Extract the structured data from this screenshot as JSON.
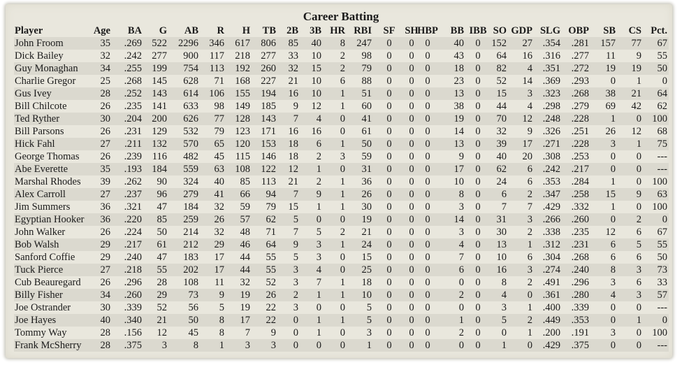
{
  "title": "Career Batting",
  "columns": [
    "Player",
    "Age",
    "BA",
    "G",
    "AB",
    "R",
    "H",
    "TB",
    "2B",
    "3B",
    "HR",
    "RBI",
    "SF",
    "SH",
    "HBP",
    "BB",
    "IBB",
    "SO",
    "GDP",
    "SLG",
    "OBP",
    "SB",
    "CS",
    "Pct."
  ],
  "rows": [
    [
      "John Froom",
      "35",
      ".269",
      "522",
      "2296",
      "346",
      "617",
      "806",
      "85",
      "40",
      "8",
      "247",
      "0",
      "0",
      "0",
      "40",
      "0",
      "152",
      "27",
      ".354",
      ".281",
      "157",
      "77",
      "67"
    ],
    [
      "Dick Bailey",
      "32",
      ".242",
      "277",
      "900",
      "117",
      "218",
      "277",
      "33",
      "10",
      "2",
      "98",
      "0",
      "0",
      "0",
      "43",
      "0",
      "64",
      "16",
      ".316",
      ".277",
      "11",
      "9",
      "55"
    ],
    [
      "Guy Monaghan",
      "34",
      ".255",
      "199",
      "754",
      "113",
      "192",
      "260",
      "32",
      "15",
      "2",
      "79",
      "0",
      "0",
      "0",
      "18",
      "0",
      "82",
      "4",
      ".351",
      ".272",
      "19",
      "19",
      "50"
    ],
    [
      "Charlie Gregor",
      "25",
      ".268",
      "145",
      "628",
      "71",
      "168",
      "227",
      "21",
      "10",
      "6",
      "88",
      "0",
      "0",
      "0",
      "23",
      "0",
      "52",
      "14",
      ".369",
      ".293",
      "0",
      "1",
      "0"
    ],
    [
      "Gus Ivey",
      "28",
      ".252",
      "143",
      "614",
      "106",
      "155",
      "194",
      "16",
      "10",
      "1",
      "51",
      "0",
      "0",
      "0",
      "13",
      "0",
      "15",
      "3",
      ".323",
      ".268",
      "38",
      "21",
      "64"
    ],
    [
      "Bill Chilcote",
      "26",
      ".235",
      "141",
      "633",
      "98",
      "149",
      "185",
      "9",
      "12",
      "1",
      "60",
      "0",
      "0",
      "0",
      "38",
      "0",
      "44",
      "4",
      ".298",
      ".279",
      "69",
      "42",
      "62"
    ],
    [
      "Ted Ryther",
      "30",
      ".204",
      "200",
      "626",
      "77",
      "128",
      "143",
      "7",
      "4",
      "0",
      "41",
      "0",
      "0",
      "0",
      "19",
      "0",
      "70",
      "12",
      ".248",
      ".228",
      "1",
      "0",
      "100"
    ],
    [
      "Bill Parsons",
      "26",
      ".231",
      "129",
      "532",
      "79",
      "123",
      "171",
      "16",
      "16",
      "0",
      "61",
      "0",
      "0",
      "0",
      "14",
      "0",
      "32",
      "9",
      ".326",
      ".251",
      "26",
      "12",
      "68"
    ],
    [
      "Hick Fahl",
      "27",
      ".211",
      "132",
      "570",
      "65",
      "120",
      "153",
      "18",
      "6",
      "1",
      "50",
      "0",
      "0",
      "0",
      "13",
      "0",
      "39",
      "17",
      ".271",
      ".228",
      "3",
      "1",
      "75"
    ],
    [
      "George Thomas",
      "26",
      ".239",
      "116",
      "482",
      "45",
      "115",
      "146",
      "18",
      "2",
      "3",
      "59",
      "0",
      "0",
      "0",
      "9",
      "0",
      "40",
      "20",
      ".308",
      ".253",
      "0",
      "0",
      "---"
    ],
    [
      "Abe Everette",
      "35",
      ".193",
      "184",
      "559",
      "63",
      "108",
      "122",
      "12",
      "1",
      "0",
      "31",
      "0",
      "0",
      "0",
      "17",
      "0",
      "62",
      "6",
      ".242",
      ".217",
      "0",
      "0",
      "---"
    ],
    [
      "Marshal Rhodes",
      "39",
      ".262",
      "90",
      "324",
      "40",
      "85",
      "113",
      "21",
      "2",
      "1",
      "36",
      "0",
      "0",
      "0",
      "10",
      "0",
      "24",
      "6",
      ".353",
      ".284",
      "1",
      "0",
      "100"
    ],
    [
      "Alex Carroll",
      "27",
      ".237",
      "96",
      "279",
      "41",
      "66",
      "94",
      "7",
      "9",
      "1",
      "26",
      "0",
      "0",
      "0",
      "8",
      "0",
      "6",
      "2",
      ".347",
      ".258",
      "15",
      "9",
      "63"
    ],
    [
      "Jim Summers",
      "36",
      ".321",
      "47",
      "184",
      "32",
      "59",
      "79",
      "15",
      "1",
      "1",
      "30",
      "0",
      "0",
      "0",
      "3",
      "0",
      "7",
      "7",
      ".429",
      ".332",
      "1",
      "0",
      "100"
    ],
    [
      "Egyptian Hooker",
      "36",
      ".220",
      "85",
      "259",
      "26",
      "57",
      "62",
      "5",
      "0",
      "0",
      "19",
      "0",
      "0",
      "0",
      "14",
      "0",
      "31",
      "3",
      ".266",
      ".260",
      "0",
      "2",
      "0"
    ],
    [
      "John Walker",
      "26",
      ".224",
      "50",
      "214",
      "32",
      "48",
      "71",
      "7",
      "5",
      "2",
      "21",
      "0",
      "0",
      "0",
      "3",
      "0",
      "30",
      "2",
      ".338",
      ".235",
      "12",
      "6",
      "67"
    ],
    [
      "Bob Walsh",
      "29",
      ".217",
      "61",
      "212",
      "29",
      "46",
      "64",
      "9",
      "3",
      "1",
      "24",
      "0",
      "0",
      "0",
      "4",
      "0",
      "13",
      "1",
      ".312",
      ".231",
      "6",
      "5",
      "55"
    ],
    [
      "Sanford Coffie",
      "29",
      ".240",
      "47",
      "183",
      "17",
      "44",
      "55",
      "5",
      "3",
      "0",
      "15",
      "0",
      "0",
      "0",
      "7",
      "0",
      "10",
      "6",
      ".304",
      ".268",
      "6",
      "6",
      "50"
    ],
    [
      "Tuck Pierce",
      "27",
      ".218",
      "55",
      "202",
      "17",
      "44",
      "55",
      "3",
      "4",
      "0",
      "25",
      "0",
      "0",
      "0",
      "6",
      "0",
      "16",
      "3",
      ".274",
      ".240",
      "8",
      "3",
      "73"
    ],
    [
      "Cub Beauregard",
      "26",
      ".296",
      "28",
      "108",
      "11",
      "32",
      "52",
      "3",
      "7",
      "1",
      "18",
      "0",
      "0",
      "0",
      "0",
      "0",
      "8",
      "2",
      ".491",
      ".296",
      "3",
      "6",
      "33"
    ],
    [
      "Billy Fisher",
      "34",
      ".260",
      "29",
      "73",
      "9",
      "19",
      "26",
      "2",
      "1",
      "1",
      "10",
      "0",
      "0",
      "0",
      "2",
      "0",
      "4",
      "0",
      ".361",
      ".280",
      "4",
      "3",
      "57"
    ],
    [
      "Joe Ostrander",
      "30",
      ".339",
      "52",
      "56",
      "5",
      "19",
      "22",
      "3",
      "0",
      "0",
      "5",
      "0",
      "0",
      "0",
      "0",
      "0",
      "3",
      "1",
      ".400",
      ".339",
      "0",
      "0",
      "---"
    ],
    [
      "Joe Hayes",
      "40",
      ".340",
      "21",
      "50",
      "8",
      "17",
      "22",
      "0",
      "1",
      "1",
      "5",
      "0",
      "0",
      "0",
      "1",
      "0",
      "5",
      "2",
      ".449",
      ".353",
      "0",
      "1",
      "0"
    ],
    [
      "Tommy Way",
      "28",
      ".156",
      "12",
      "45",
      "8",
      "7",
      "9",
      "0",
      "1",
      "0",
      "3",
      "0",
      "0",
      "0",
      "2",
      "0",
      "0",
      "1",
      ".200",
      ".191",
      "3",
      "0",
      "100"
    ],
    [
      "Frank McSherry",
      "28",
      ".375",
      "3",
      "8",
      "1",
      "3",
      "3",
      "0",
      "0",
      "0",
      "1",
      "0",
      "0",
      "0",
      "0",
      "0",
      "1",
      "0",
      ".429",
      ".375",
      "0",
      "0",
      "---"
    ]
  ]
}
